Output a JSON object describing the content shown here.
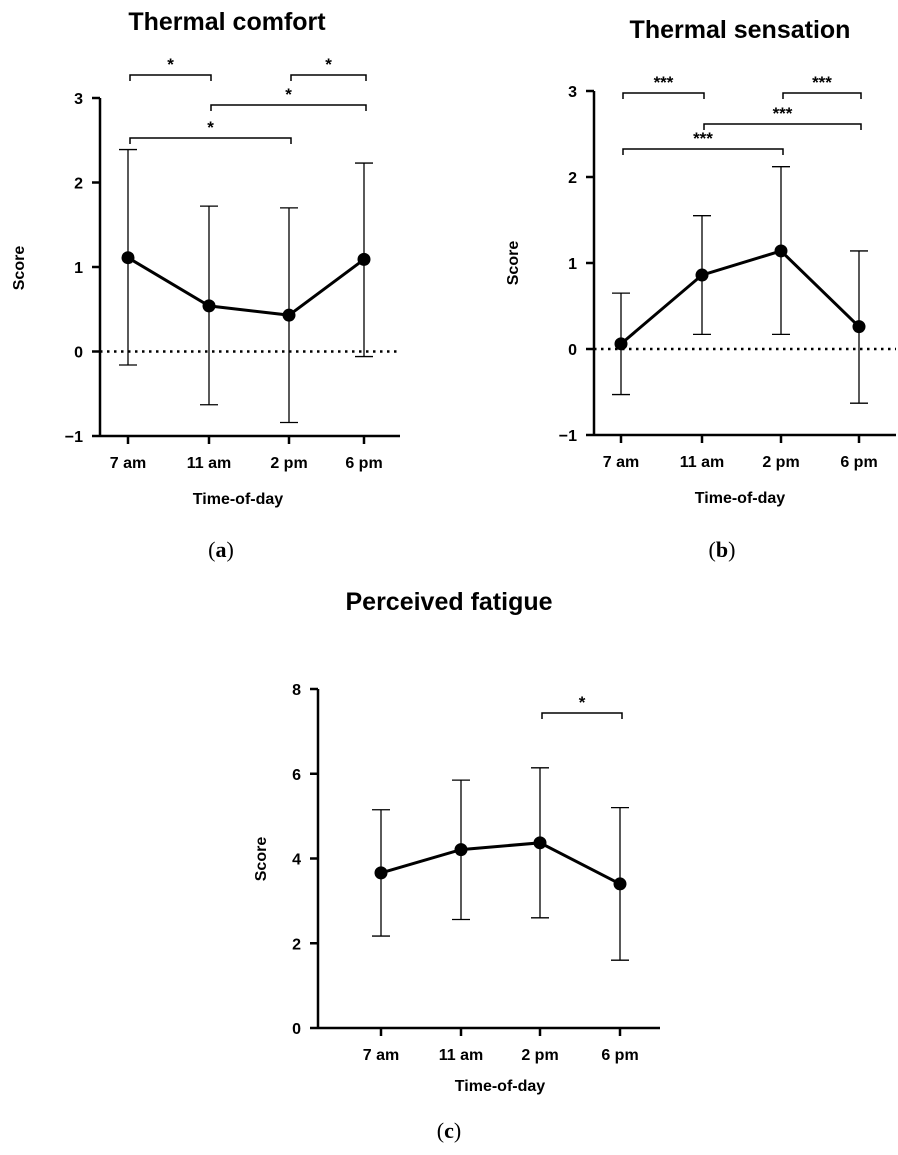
{
  "chart_data": [
    {
      "type": "line",
      "title": "Thermal comfort",
      "xlabel": "Time-of-day",
      "ylabel": "Score",
      "caption_open": "(",
      "caption_letter": "a",
      "caption_close": ")",
      "categories": [
        "7 am",
        "11 am",
        "2 pm",
        "6 pm"
      ],
      "values": [
        1.11,
        0.54,
        0.43,
        1.09
      ],
      "error_upper": [
        2.39,
        1.72,
        1.7,
        2.23
      ],
      "error_lower": [
        -0.16,
        -0.63,
        -0.84,
        -0.06
      ],
      "ylim": [
        -1,
        3
      ],
      "yticks": [
        -1,
        0,
        1,
        2,
        3
      ],
      "ytick_labels": [
        "−1",
        "0",
        "1",
        "2",
        "3"
      ],
      "reference_line": 0,
      "significance": [
        {
          "from": 0,
          "to": 1,
          "label": "*"
        },
        {
          "from": 2,
          "to": 3,
          "label": "*"
        },
        {
          "from": 1,
          "to": 3,
          "label": "*"
        },
        {
          "from": 0,
          "to": 2,
          "label": "*"
        }
      ]
    },
    {
      "type": "line",
      "title": "Thermal sensation",
      "xlabel": "Time-of-day",
      "ylabel": "Score",
      "caption_open": "(",
      "caption_letter": "b",
      "caption_close": ")",
      "categories": [
        "7 am",
        "11 am",
        "2 pm",
        "6 pm"
      ],
      "values": [
        0.06,
        0.86,
        1.14,
        0.26
      ],
      "error_upper": [
        0.65,
        1.55,
        2.12,
        1.14
      ],
      "error_lower": [
        -0.53,
        0.17,
        0.17,
        -0.63
      ],
      "ylim": [
        -1,
        3
      ],
      "yticks": [
        -1,
        0,
        1,
        2,
        3
      ],
      "ytick_labels": [
        "−1",
        "0",
        "1",
        "2",
        "3"
      ],
      "reference_line": 0,
      "significance": [
        {
          "from": 0,
          "to": 1,
          "label": "***"
        },
        {
          "from": 2,
          "to": 3,
          "label": "***"
        },
        {
          "from": 1,
          "to": 3,
          "label": "***"
        },
        {
          "from": 0,
          "to": 2,
          "label": "***"
        }
      ]
    },
    {
      "type": "line",
      "title": "Perceived fatigue",
      "xlabel": "Time-of-day",
      "ylabel": "Score",
      "caption_open": "(",
      "caption_letter": "c",
      "caption_close": ")",
      "categories": [
        "7 am",
        "11 am",
        "2 pm",
        "6 pm"
      ],
      "values": [
        3.66,
        4.21,
        4.37,
        3.4
      ],
      "error_upper": [
        5.15,
        5.85,
        6.14,
        5.2
      ],
      "error_lower": [
        2.17,
        2.56,
        2.6,
        1.6
      ],
      "ylim": [
        0,
        8
      ],
      "yticks": [
        0,
        2,
        4,
        6,
        8
      ],
      "ytick_labels": [
        "0",
        "2",
        "4",
        "6",
        "8"
      ],
      "reference_line": null,
      "significance": [
        {
          "from": 2,
          "to": 3,
          "label": "*"
        }
      ]
    }
  ]
}
